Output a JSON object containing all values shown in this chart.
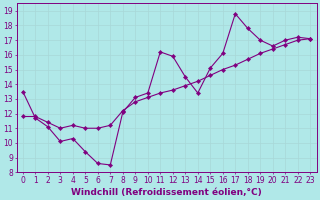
{
  "xlabel": "Windchill (Refroidissement éolien,°C)",
  "ylabel": "",
  "bg_color": "#b0e8e8",
  "line_color": "#800080",
  "x_data": [
    0,
    1,
    2,
    3,
    4,
    5,
    6,
    7,
    8,
    9,
    10,
    11,
    12,
    13,
    14,
    15,
    16,
    17,
    18,
    19,
    20,
    21,
    22,
    23
  ],
  "y_jagged": [
    13.5,
    11.7,
    11.1,
    10.1,
    10.3,
    9.4,
    8.6,
    8.5,
    12.1,
    13.1,
    13.4,
    16.2,
    15.9,
    14.5,
    13.4,
    15.1,
    16.1,
    18.8,
    17.8,
    17.0,
    16.6,
    17.0,
    17.2,
    17.1
  ],
  "y_trend": [
    11.8,
    11.8,
    11.4,
    11.0,
    11.2,
    11.0,
    11.0,
    11.2,
    12.2,
    12.8,
    13.1,
    13.4,
    13.6,
    13.9,
    14.2,
    14.6,
    15.0,
    15.3,
    15.7,
    16.1,
    16.4,
    16.7,
    17.0,
    17.1
  ],
  "ylim": [
    8,
    19.5
  ],
  "xlim": [
    -0.5,
    23.5
  ],
  "yticks": [
    8,
    9,
    10,
    11,
    12,
    13,
    14,
    15,
    16,
    17,
    18,
    19
  ],
  "xticks": [
    0,
    1,
    2,
    3,
    4,
    5,
    6,
    7,
    8,
    9,
    10,
    11,
    12,
    13,
    14,
    15,
    16,
    17,
    18,
    19,
    20,
    21,
    22,
    23
  ],
  "grid_color": "#a8d8d8",
  "tick_font_size": 5.5,
  "xlabel_font_size": 6.5,
  "marker": "D",
  "marker_size": 2.2,
  "line_width": 0.8
}
